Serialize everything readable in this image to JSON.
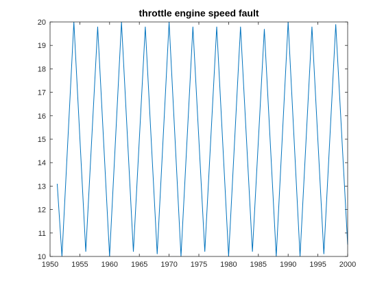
{
  "chart_data": {
    "type": "line",
    "title": "throttle engine speed fault",
    "xlabel": "",
    "ylabel": "",
    "xlim": [
      1950,
      2000
    ],
    "ylim": [
      10,
      20
    ],
    "xticks": [
      1950,
      1955,
      1960,
      1965,
      1970,
      1975,
      1980,
      1985,
      1990,
      1995,
      2000
    ],
    "yticks": [
      10,
      11,
      12,
      13,
      14,
      15,
      16,
      17,
      18,
      19,
      20
    ],
    "grid": false,
    "line_color": "#0072BD",
    "series": [
      {
        "x": [
          1951.2,
          1952.0,
          1954.0,
          1956.0,
          1958.0,
          1960.0,
          1962.0,
          1964.0,
          1966.0,
          1968.0,
          1970.0,
          1972.0,
          1974.0,
          1976.0,
          1978.0,
          1980.0,
          1982.0,
          1984.0,
          1986.0,
          1988.0,
          1990.0,
          1992.0,
          1994.0,
          1996.0,
          1998.0,
          2000.0
        ],
        "y": [
          13.1,
          10.0,
          20.0,
          10.2,
          19.8,
          10.0,
          20.0,
          10.2,
          19.8,
          10.1,
          20.0,
          10.0,
          19.8,
          10.2,
          19.8,
          10.0,
          19.8,
          10.2,
          19.7,
          10.0,
          20.0,
          10.0,
          19.8,
          10.1,
          19.9,
          10.5
        ]
      }
    ]
  }
}
